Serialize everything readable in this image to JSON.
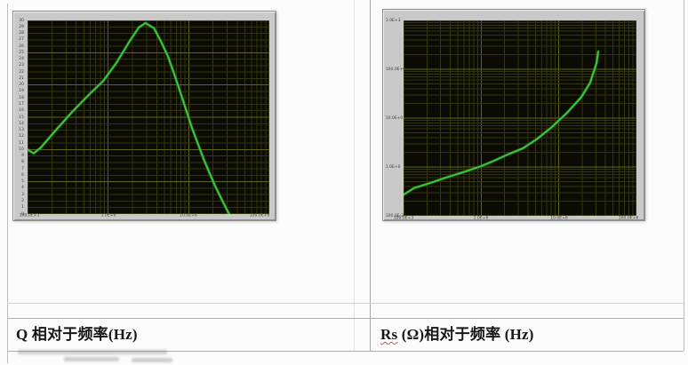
{
  "captions": {
    "left": "Q 相对于频率(Hz)",
    "right_prefix": "Rs",
    "right_rest": " (Ω)相对于频率 (Hz)"
  },
  "colors": {
    "trace": "#3ec53e",
    "trace_glow": "#1e7d1e",
    "plot_bg": "#0b0b03",
    "grid_minor": "#34340f",
    "grid_major": "#62621f",
    "frame": "#c9c9c9",
    "page_bg": "#fcfcfc",
    "table_line": "#bdbdbd"
  },
  "chart_data": [
    {
      "type": "line",
      "title": "Q 相对于频率(Hz)",
      "x_scale": "log",
      "x_range": [
        100000,
        100000000
      ],
      "x_ticks": [
        {
          "value": 100000,
          "label": "100.0E+3"
        },
        {
          "value": 1000000,
          "label": "1.0E+6"
        },
        {
          "value": 10000000,
          "label": "10.0E+6"
        },
        {
          "value": 100000000,
          "label": "100.0E+6"
        }
      ],
      "y_scale": "linear",
      "y_range": [
        0,
        30
      ],
      "y_tick_step": 1,
      "y_major_every": 5,
      "xlabel": "频率(Hz)",
      "ylabel": "Q",
      "grid": true,
      "series": [
        {
          "name": "Q",
          "points": [
            [
              100000,
              10.0
            ],
            [
              119000,
              9.4
            ],
            [
              146000,
              10.3
            ],
            [
              214000,
              12.7
            ],
            [
              356000,
              15.8
            ],
            [
              590000,
              18.6
            ],
            [
              865000,
              20.6
            ],
            [
              1260000,
              23.4
            ],
            [
              1850000,
              26.8
            ],
            [
              2400000,
              28.9
            ],
            [
              2900000,
              29.6
            ],
            [
              3700000,
              28.8
            ],
            [
              4500000,
              26.8
            ],
            [
              5500000,
              24.5
            ],
            [
              6600000,
              21.7
            ],
            [
              8500000,
              17.6
            ],
            [
              11000000,
              13.3
            ],
            [
              15300000,
              8.5
            ],
            [
              21000000,
              4.5
            ],
            [
              27000000,
              1.7
            ],
            [
              31700000,
              0.0
            ]
          ]
        }
      ]
    },
    {
      "type": "line",
      "title": "Rs (Ω)相对于频率 (Hz)",
      "x_scale": "log",
      "x_range": [
        100000,
        100000000
      ],
      "x_ticks": [
        {
          "value": 100000,
          "label": "100.0E+3"
        },
        {
          "value": 1000000,
          "label": "1.0E+6"
        },
        {
          "value": 10000000,
          "label": "10.0E+6"
        },
        {
          "value": 100000000,
          "label": "100.0E+6"
        }
      ],
      "y_scale": "log",
      "y_range": [
        0.1,
        1000
      ],
      "y_ticks": [
        {
          "value": 0.1,
          "label": "100.0E-3"
        },
        {
          "value": 1,
          "label": "1.0E+0"
        },
        {
          "value": 10,
          "label": "10.0E+0"
        },
        {
          "value": 100,
          "label": "100.0E+0"
        },
        {
          "value": 1000,
          "label": "1.0E+3"
        }
      ],
      "xlabel": "频率 (Hz)",
      "ylabel": "Rs (Ω)",
      "grid": true,
      "series": [
        {
          "name": "Rs",
          "points": [
            [
              100000,
              0.27
            ],
            [
              137000,
              0.37
            ],
            [
              204000,
              0.45
            ],
            [
              345000,
              0.6
            ],
            [
              586000,
              0.78
            ],
            [
              1000000,
              1.04
            ],
            [
              1470000,
              1.34
            ],
            [
              2190000,
              1.8
            ],
            [
              3430000,
              2.4
            ],
            [
              5200000,
              3.7
            ],
            [
              8200000,
              6.6
            ],
            [
              12800000,
              12.9
            ],
            [
              19500000,
              27
            ],
            [
              25300000,
              53
            ],
            [
              30600000,
              134
            ],
            [
              32200000,
              230
            ]
          ]
        }
      ]
    }
  ]
}
